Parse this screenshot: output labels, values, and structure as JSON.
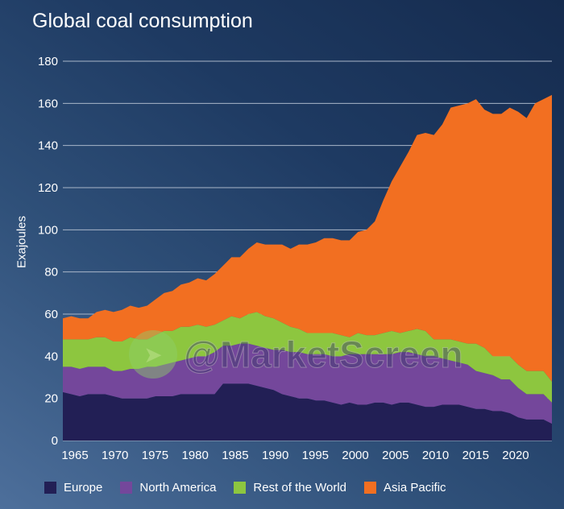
{
  "chart_data": {
    "type": "area",
    "stacked": true,
    "title": "Global coal consumption",
    "xlabel": "",
    "ylabel": "Exajoules",
    "ylim": [
      0,
      180
    ],
    "yticks": [
      0,
      20,
      40,
      60,
      80,
      100,
      120,
      140,
      160,
      180
    ],
    "xticks": [
      1965,
      1970,
      1975,
      1980,
      1985,
      1990,
      1995,
      2000,
      2005,
      2010,
      2015,
      2020
    ],
    "grid": true,
    "legend_position": "bottom",
    "x": [
      1965,
      1966,
      1967,
      1968,
      1969,
      1970,
      1971,
      1972,
      1973,
      1974,
      1975,
      1976,
      1977,
      1978,
      1979,
      1980,
      1981,
      1982,
      1983,
      1984,
      1985,
      1986,
      1987,
      1988,
      1989,
      1990,
      1991,
      1992,
      1993,
      1994,
      1995,
      1996,
      1997,
      1998,
      1999,
      2000,
      2001,
      2002,
      2003,
      2004,
      2005,
      2006,
      2007,
      2008,
      2009,
      2010,
      2011,
      2012,
      2013,
      2014,
      2015,
      2016,
      2017,
      2018,
      2019,
      2020,
      2021,
      2022,
      2023
    ],
    "series": [
      {
        "name": "Europe",
        "color": "#221f55",
        "values": [
          23,
          22,
          21,
          22,
          22,
          22,
          21,
          20,
          20,
          20,
          20,
          21,
          21,
          21,
          22,
          22,
          22,
          22,
          22,
          27,
          27,
          27,
          27,
          26,
          25,
          24,
          22,
          21,
          20,
          20,
          19,
          19,
          18,
          17,
          18,
          17,
          17,
          18,
          18,
          17,
          18,
          18,
          17,
          16,
          16,
          17,
          17,
          17,
          16,
          15,
          15,
          14,
          14,
          13,
          11,
          10,
          10,
          10,
          8
        ]
      },
      {
        "name": "North America",
        "color": "#74479b",
        "values": [
          12,
          13,
          13,
          13,
          13,
          13,
          12,
          13,
          14,
          14,
          15,
          14,
          15,
          16,
          16,
          17,
          18,
          18,
          20,
          18,
          18,
          19,
          19,
          19,
          19,
          19,
          21,
          21,
          22,
          21,
          22,
          22,
          22,
          23,
          23,
          24,
          24,
          23,
          23,
          24,
          24,
          24,
          24,
          24,
          24,
          22,
          21,
          20,
          20,
          18,
          17,
          17,
          15,
          16,
          14,
          12,
          12,
          12,
          10
        ]
      },
      {
        "name": "Rest of the World",
        "color": "#8dc63f",
        "values": [
          13,
          13,
          14,
          13,
          14,
          14,
          14,
          14,
          15,
          14,
          13,
          15,
          16,
          15,
          16,
          15,
          15,
          14,
          13,
          12,
          14,
          12,
          14,
          16,
          15,
          15,
          13,
          12,
          11,
          10,
          10,
          10,
          11,
          10,
          8,
          10,
          9,
          9,
          10,
          11,
          9,
          10,
          12,
          12,
          8,
          9,
          10,
          10,
          10,
          13,
          12,
          9,
          11,
          11,
          11,
          11,
          11,
          11,
          10
        ]
      },
      {
        "name": "Asia Pacific",
        "color": "#f26f21",
        "values": [
          10,
          11,
          10,
          10,
          12,
          13,
          14,
          15,
          15,
          15,
          16,
          17,
          18,
          19,
          20,
          21,
          22,
          22,
          24,
          26,
          28,
          29,
          31,
          33,
          34,
          35,
          37,
          37,
          40,
          42,
          43,
          45,
          45,
          45,
          46,
          48,
          50,
          54,
          63,
          71,
          79,
          85,
          92,
          94,
          97,
          102,
          110,
          112,
          114,
          116,
          113,
          115,
          115,
          118,
          120,
          120,
          127,
          129,
          136
        ]
      }
    ]
  },
  "watermark": "@MarketScreen"
}
